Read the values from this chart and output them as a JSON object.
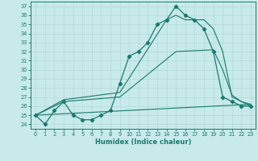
{
  "xlabel": "Humidex (Indice chaleur)",
  "bg_color": "#c8eaea",
  "grid_color": "#b0d8d8",
  "line_color": "#1a7a6e",
  "yticks": [
    24,
    25,
    26,
    27,
    28,
    29,
    30,
    31,
    32,
    33,
    34,
    35,
    36,
    37
  ],
  "xticks": [
    0,
    1,
    2,
    3,
    4,
    5,
    6,
    7,
    8,
    9,
    10,
    11,
    12,
    13,
    14,
    15,
    16,
    17,
    18,
    19,
    20,
    21,
    22,
    23
  ],
  "main_x": [
    0,
    1,
    2,
    3,
    4,
    5,
    6,
    7,
    8,
    9,
    10,
    11,
    12,
    13,
    14,
    15,
    16,
    17,
    18,
    19,
    20,
    21,
    22,
    23
  ],
  "main_y": [
    25.0,
    24.0,
    25.5,
    26.5,
    25.0,
    24.5,
    24.5,
    25.0,
    25.5,
    28.5,
    31.5,
    32.0,
    33.0,
    35.0,
    35.5,
    37.0,
    36.0,
    35.5,
    34.5,
    32.0,
    27.0,
    26.5,
    26.0,
    26.0
  ],
  "trend1_x": [
    0,
    23
  ],
  "trend1_y": [
    25.0,
    26.2
  ],
  "trend2_x": [
    0,
    3,
    9,
    15,
    19,
    20,
    21,
    22,
    23
  ],
  "trend2_y": [
    25.0,
    26.5,
    27.0,
    32.0,
    32.2,
    30.0,
    27.2,
    26.5,
    26.2
  ],
  "trend3_x": [
    0,
    3,
    9,
    14,
    15,
    16,
    18,
    19,
    20,
    21,
    22,
    23
  ],
  "trend3_y": [
    25.0,
    26.7,
    27.5,
    35.5,
    36.0,
    35.5,
    35.5,
    34.5,
    32.0,
    27.0,
    26.5,
    26.0
  ]
}
